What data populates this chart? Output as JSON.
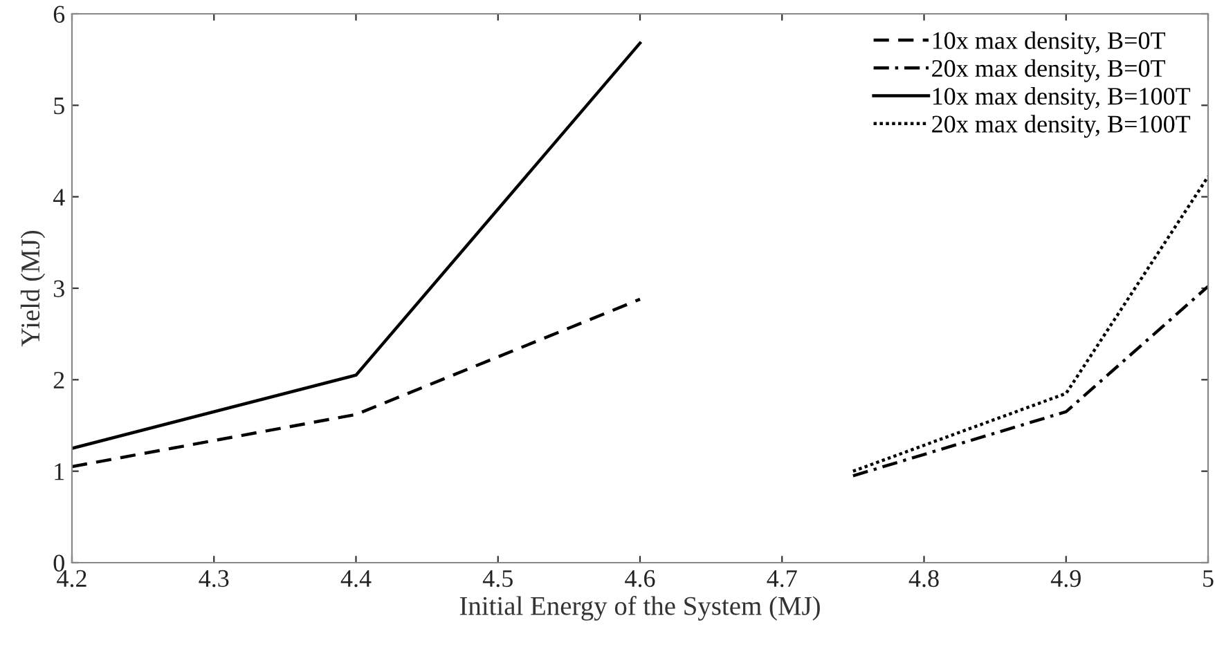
{
  "chart_data": {
    "type": "line",
    "xlabel": "Initial Energy of the System (MJ)",
    "ylabel": "Yield (MJ)",
    "xlim": [
      4.2,
      5
    ],
    "xticks": [
      4.2,
      4.3,
      4.4,
      4.5,
      4.6,
      4.7,
      4.8,
      4.9,
      5
    ],
    "ylim": [
      0,
      6
    ],
    "yticks": [
      0,
      1,
      2,
      3,
      4,
      5,
      6
    ],
    "grid": false,
    "legend": "top right",
    "marker": "none",
    "series": [
      {
        "name": "10x max density, B=0T",
        "color": "#000000",
        "line_style": "dashed",
        "x": [
          4.2,
          4.4,
          4.6
        ],
        "values": [
          1.05,
          1.62,
          2.88
        ]
      },
      {
        "name": "20x max density, B=0T",
        "color": "#000000",
        "line_style": "dashdot",
        "x": [
          4.75,
          4.9,
          5
        ],
        "values": [
          0.95,
          1.65,
          3.02
        ]
      },
      {
        "name": "10x max density, B=100T",
        "color": "#000000",
        "line_style": "solid",
        "x": [
          4.2,
          4.4,
          4.6
        ],
        "values": [
          1.25,
          2.05,
          5.68
        ]
      },
      {
        "name": "20x max density, B=100T",
        "color": "#000000",
        "line_style": "dotted",
        "x": [
          4.75,
          4.9,
          5
        ],
        "values": [
          1.0,
          1.85,
          4.22
        ]
      }
    ]
  }
}
